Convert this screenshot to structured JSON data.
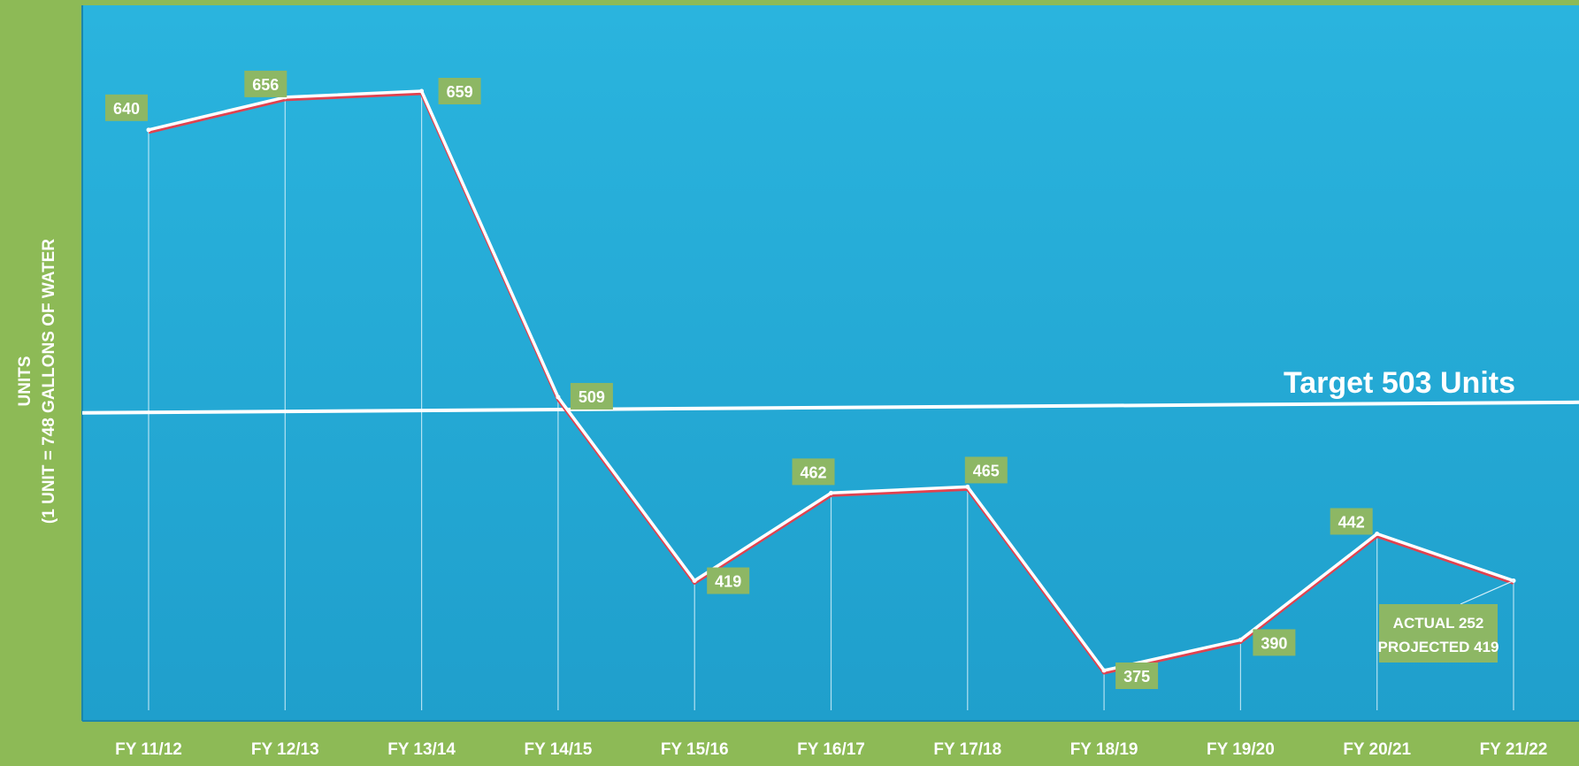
{
  "chart_data": {
    "type": "line",
    "ylabel_line1": "UNITS",
    "ylabel_line2": "(1 UNIT = 748 GALLONS OF WATER",
    "categories": [
      "FY 11/12",
      "FY 12/13",
      "FY 13/14",
      "FY 14/15",
      "FY 15/16",
      "FY 16/17",
      "FY 17/18",
      "FY 18/19",
      "FY 19/20",
      "FY 20/21",
      "FY 21/22"
    ],
    "series": [
      {
        "values": [
          640,
          656,
          659,
          509,
          419,
          462,
          465,
          375,
          390,
          442,
          419
        ]
      }
    ],
    "data_labels": [
      "640",
      "656",
      "659",
      "509",
      "419",
      "462",
      "465",
      "375",
      "390",
      "442",
      ""
    ],
    "target": {
      "value": 503,
      "label": "Target 503 Units"
    },
    "annotation": {
      "line1": "ACTUAL 252",
      "line2": "PROJECTED 419"
    },
    "ylim": [
      330,
      730
    ],
    "grid": false,
    "colors": {
      "plot_bg": "#24a9d6",
      "page_bg": "#8dba56",
      "label_box": "#8db764",
      "line": "#ffffff",
      "line_shadow": "#e0424f"
    }
  }
}
